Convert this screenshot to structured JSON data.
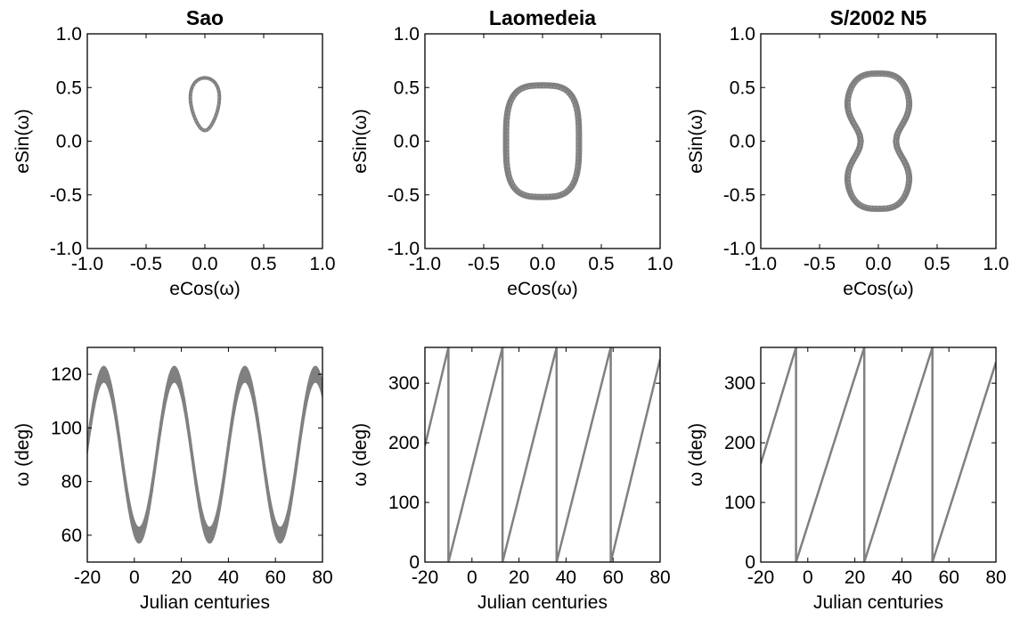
{
  "figure": {
    "series_color": "#808080",
    "panels": [
      {
        "title": "Sao",
        "chart_data": {
          "type": "scatter",
          "title": "Sao",
          "xlabel": "eCos(ω)",
          "ylabel": "eSin(ω)",
          "xlim": [
            -1.0,
            1.0
          ],
          "ylim": [
            -1.0,
            1.0
          ],
          "xticks": [
            -1.0,
            -0.5,
            0.0,
            0.5,
            1.0
          ],
          "yticks": [
            -1.0,
            -0.5,
            0.0,
            0.5,
            1.0
          ],
          "xtick_labels": [
            "-1.0",
            "-0.5",
            "0.0",
            "0.5",
            "1.0"
          ],
          "ytick_labels": [
            "-1.0",
            "-0.5",
            "0.0",
            "0.5",
            "1.0"
          ],
          "grid": false,
          "shape": {
            "center_x": 0.0,
            "half_width": 0.15,
            "y_min": 0.1,
            "y_max": 0.59,
            "form": "teardrop"
          }
        }
      },
      {
        "title": "Laomedeia",
        "chart_data": {
          "type": "scatter",
          "title": "Laomedeia",
          "xlabel": "eCos(ω)",
          "ylabel": "eSin(ω)",
          "xlim": [
            -1.0,
            1.0
          ],
          "ylim": [
            -1.0,
            1.0
          ],
          "xticks": [
            -1.0,
            -0.5,
            0.0,
            0.5,
            1.0
          ],
          "yticks": [
            -1.0,
            -0.5,
            0.0,
            0.5,
            1.0
          ],
          "xtick_labels": [
            "-1.0",
            "-0.5",
            "0.0",
            "0.5",
            "1.0"
          ],
          "ytick_labels": [
            "-1.0",
            "-0.5",
            "0.0",
            "0.5",
            "1.0"
          ],
          "grid": false,
          "shape": {
            "center_x": 0.0,
            "half_width": 0.31,
            "half_height": 0.52,
            "form": "rounded-oval"
          }
        }
      },
      {
        "title": "S/2002 N5",
        "chart_data": {
          "type": "scatter",
          "title": "S/2002 N5",
          "xlabel": "eCos(ω)",
          "ylabel": "eSin(ω)",
          "xlim": [
            -1.0,
            1.0
          ],
          "ylim": [
            -1.0,
            1.0
          ],
          "xticks": [
            -1.0,
            -0.5,
            0.0,
            0.5,
            1.0
          ],
          "yticks": [
            -1.0,
            -0.5,
            0.0,
            0.5,
            1.0
          ],
          "xtick_labels": [
            "-1.0",
            "-0.5",
            "0.0",
            "0.5",
            "1.0"
          ],
          "ytick_labels": [
            "-1.0",
            "-0.5",
            "0.0",
            "0.5",
            "1.0"
          ],
          "grid": false,
          "shape": {
            "center_x": 0.0,
            "half_width": 0.29,
            "waist_half_width": 0.15,
            "half_height": 0.63,
            "form": "peanut"
          }
        }
      },
      {
        "chart_data": {
          "type": "line",
          "xlabel": "Julian centuries",
          "ylabel": "ω (deg)",
          "xlim": [
            -20,
            80
          ],
          "ylim": [
            50,
            130
          ],
          "xticks": [
            -20,
            0,
            20,
            40,
            60,
            80
          ],
          "yticks": [
            60,
            80,
            100,
            120
          ],
          "xtick_labels": [
            "-20",
            "0",
            "20",
            "40",
            "60",
            "80"
          ],
          "ytick_labels": [
            "60",
            "80",
            "100",
            "120"
          ],
          "grid": false,
          "band": {
            "center_deg": 90,
            "amplitude_deg": 30,
            "period_centuries": 30,
            "peak_at_x": -13,
            "band_width_deg": 6
          }
        }
      },
      {
        "chart_data": {
          "type": "line",
          "xlabel": "Julian centuries",
          "ylabel": "ω (deg)",
          "xlim": [
            -20,
            80
          ],
          "ylim": [
            0,
            360
          ],
          "xticks": [
            -20,
            0,
            20,
            40,
            60,
            80
          ],
          "yticks": [
            0,
            100,
            200,
            300
          ],
          "xtick_labels": [
            "-20",
            "0",
            "20",
            "40",
            "60",
            "80"
          ],
          "ytick_labels": [
            "0",
            "100",
            "200",
            "300"
          ],
          "grid": false,
          "x": [
            -20,
            -10,
            -10,
            13,
            13,
            36,
            36,
            59,
            59,
            80
          ],
          "y": [
            195,
            360,
            0,
            360,
            0,
            360,
            0,
            360,
            0,
            340
          ]
        }
      },
      {
        "chart_data": {
          "type": "line",
          "xlabel": "Julian centuries",
          "ylabel": "ω (deg)",
          "xlim": [
            -20,
            80
          ],
          "ylim": [
            0,
            360
          ],
          "xticks": [
            -20,
            0,
            20,
            40,
            60,
            80
          ],
          "yticks": [
            0,
            100,
            200,
            300
          ],
          "xtick_labels": [
            "-20",
            "0",
            "20",
            "40",
            "60",
            "80"
          ],
          "ytick_labels": [
            "0",
            "100",
            "200",
            "300"
          ],
          "grid": false,
          "x": [
            -20,
            -5,
            -5,
            24,
            24,
            53,
            53,
            80
          ],
          "y": [
            165,
            360,
            0,
            360,
            0,
            360,
            0,
            335
          ]
        }
      }
    ]
  }
}
